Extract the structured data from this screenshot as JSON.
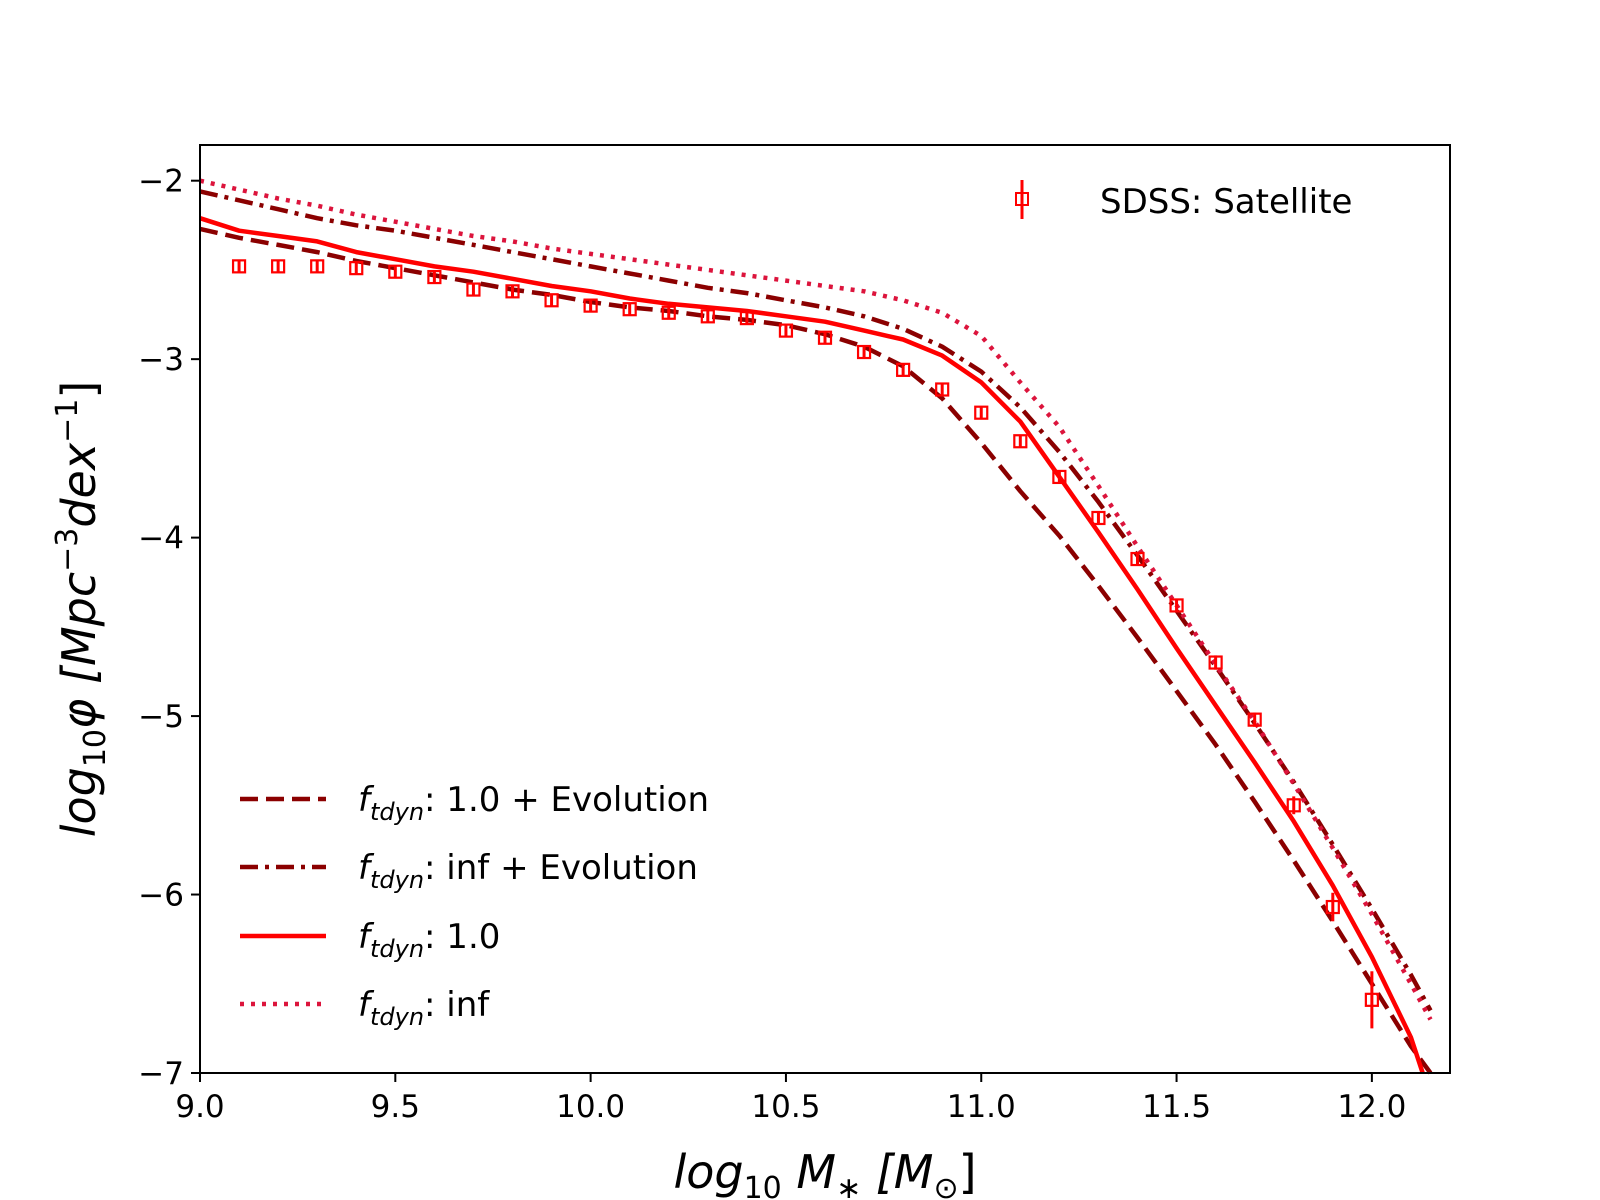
{
  "chart_data": {
    "type": "line",
    "title": "",
    "xlabel": {
      "main": "log",
      "sub": "10",
      "var": " M",
      "var_sub": "∗",
      "unit": "  [M",
      "unit_sub": "⊙",
      "close": "]"
    },
    "ylabel": {
      "main": "log",
      "sub": "10",
      "phi": "φ [Mpc",
      "sup1": "−3",
      "dex": "dex",
      "sup2": "−1",
      "close": "]"
    },
    "xlim": [
      9.0,
      12.2
    ],
    "ylim": [
      -7.0,
      -1.8
    ],
    "x_ticks": [
      9.0,
      9.5,
      10.0,
      10.5,
      11.0,
      11.5,
      12.0
    ],
    "x_tick_labels": [
      "9.0",
      "9.5",
      "10.0",
      "10.5",
      "11.0",
      "11.5",
      "12.0"
    ],
    "y_ticks": [
      -2,
      -3,
      -4,
      -5,
      -6,
      -7
    ],
    "y_tick_labels": [
      "−2",
      "−3",
      "−4",
      "−5",
      "−6",
      "−7"
    ],
    "series": [
      {
        "name": "f_tdyn: 1.0 + Evolution",
        "legend_base": "f",
        "legend_sub": "tdyn",
        "legend_rest": ": 1.0 + Evolution",
        "color": "#8b0000",
        "style": "dashed",
        "x": [
          9.0,
          9.1,
          9.2,
          9.3,
          9.4,
          9.5,
          9.6,
          9.7,
          9.8,
          9.9,
          10.0,
          10.1,
          10.2,
          10.3,
          10.4,
          10.5,
          10.6,
          10.7,
          10.8,
          10.9,
          11.0,
          11.1,
          11.2,
          11.3,
          11.4,
          11.5,
          11.6,
          11.7,
          11.8,
          11.9,
          12.0,
          12.1,
          12.15
        ],
        "y": [
          -2.27,
          -2.32,
          -2.36,
          -2.4,
          -2.45,
          -2.49,
          -2.53,
          -2.57,
          -2.61,
          -2.64,
          -2.68,
          -2.71,
          -2.73,
          -2.76,
          -2.78,
          -2.81,
          -2.86,
          -2.93,
          -3.04,
          -3.22,
          -3.47,
          -3.74,
          -3.99,
          -4.27,
          -4.56,
          -4.86,
          -5.16,
          -5.48,
          -5.81,
          -6.15,
          -6.5,
          -6.85,
          -7.0
        ]
      },
      {
        "name": "f_tdyn: inf + Evolution",
        "legend_base": "f",
        "legend_sub": "tdyn",
        "legend_rest": ": inf + Evolution",
        "color": "#8b0000",
        "style": "dashdot",
        "x": [
          9.0,
          9.1,
          9.2,
          9.3,
          9.4,
          9.5,
          9.6,
          9.7,
          9.8,
          9.9,
          10.0,
          10.1,
          10.2,
          10.3,
          10.4,
          10.5,
          10.6,
          10.7,
          10.8,
          10.9,
          11.0,
          11.1,
          11.2,
          11.3,
          11.4,
          11.5,
          11.6,
          11.7,
          11.8,
          11.9,
          12.0,
          12.1,
          12.15
        ],
        "y": [
          -2.06,
          -2.11,
          -2.16,
          -2.21,
          -2.25,
          -2.28,
          -2.32,
          -2.36,
          -2.4,
          -2.44,
          -2.48,
          -2.52,
          -2.56,
          -2.6,
          -2.63,
          -2.67,
          -2.71,
          -2.76,
          -2.83,
          -2.93,
          -3.07,
          -3.27,
          -3.52,
          -3.8,
          -4.1,
          -4.41,
          -4.72,
          -5.04,
          -5.37,
          -5.72,
          -6.08,
          -6.45,
          -6.65
        ]
      },
      {
        "name": "f_tdyn: 1.0",
        "legend_base": "f",
        "legend_sub": "tdyn",
        "legend_rest": ": 1.0",
        "color": "#ff0000",
        "style": "solid",
        "x": [
          9.0,
          9.1,
          9.2,
          9.3,
          9.4,
          9.5,
          9.6,
          9.7,
          9.8,
          9.9,
          10.0,
          10.1,
          10.2,
          10.3,
          10.4,
          10.5,
          10.6,
          10.7,
          10.8,
          10.9,
          11.0,
          11.1,
          11.2,
          11.3,
          11.4,
          11.5,
          11.6,
          11.7,
          11.8,
          11.9,
          12.0,
          12.1,
          12.13
        ],
        "y": [
          -2.21,
          -2.28,
          -2.31,
          -2.34,
          -2.4,
          -2.44,
          -2.48,
          -2.51,
          -2.55,
          -2.59,
          -2.62,
          -2.66,
          -2.69,
          -2.71,
          -2.73,
          -2.76,
          -2.79,
          -2.84,
          -2.89,
          -2.98,
          -3.13,
          -3.35,
          -3.66,
          -3.97,
          -4.29,
          -4.62,
          -4.94,
          -5.26,
          -5.59,
          -5.95,
          -6.35,
          -6.8,
          -7.0
        ]
      },
      {
        "name": "f_tdyn: inf",
        "legend_base": "f",
        "legend_sub": "tdyn",
        "legend_rest": ": inf",
        "color": "#dc143c",
        "style": "dotted",
        "x": [
          9.0,
          9.1,
          9.2,
          9.3,
          9.4,
          9.5,
          9.6,
          9.7,
          9.8,
          9.9,
          10.0,
          10.1,
          10.2,
          10.3,
          10.4,
          10.5,
          10.6,
          10.7,
          10.8,
          10.9,
          11.0,
          11.1,
          11.2,
          11.3,
          11.4,
          11.5,
          11.6,
          11.7,
          11.8,
          11.9,
          12.0,
          12.1,
          12.15
        ],
        "y": [
          -2.0,
          -2.05,
          -2.1,
          -2.14,
          -2.19,
          -2.23,
          -2.27,
          -2.31,
          -2.34,
          -2.38,
          -2.41,
          -2.44,
          -2.47,
          -2.5,
          -2.53,
          -2.56,
          -2.59,
          -2.62,
          -2.67,
          -2.74,
          -2.87,
          -3.13,
          -3.38,
          -3.71,
          -4.05,
          -4.38,
          -4.71,
          -5.03,
          -5.38,
          -5.74,
          -6.11,
          -6.5,
          -6.7
        ]
      }
    ],
    "observations": {
      "name": "SDSS: Satellite",
      "color": "#ff0000",
      "marker": "square-open",
      "x": [
        9.1,
        9.2,
        9.3,
        9.4,
        9.5,
        9.6,
        9.7,
        9.8,
        9.9,
        10.0,
        10.1,
        10.2,
        10.3,
        10.4,
        10.5,
        10.6,
        10.7,
        10.8,
        10.9,
        11.0,
        11.1,
        11.2,
        11.3,
        11.4,
        11.5,
        11.6,
        11.7,
        11.8,
        11.9,
        12.0
      ],
      "y": [
        -2.48,
        -2.48,
        -2.48,
        -2.49,
        -2.51,
        -2.54,
        -2.61,
        -2.62,
        -2.67,
        -2.7,
        -2.72,
        -2.74,
        -2.76,
        -2.77,
        -2.84,
        -2.88,
        -2.96,
        -3.06,
        -3.17,
        -3.3,
        -3.46,
        -3.66,
        -3.89,
        -4.12,
        -4.38,
        -4.7,
        -5.02,
        -5.5,
        -6.07,
        -6.59
      ],
      "yerr": [
        0.02,
        0.02,
        0.02,
        0.02,
        0.02,
        0.02,
        0.02,
        0.02,
        0.02,
        0.02,
        0.02,
        0.02,
        0.02,
        0.02,
        0.02,
        0.02,
        0.02,
        0.02,
        0.02,
        0.02,
        0.02,
        0.03,
        0.03,
        0.03,
        0.03,
        0.04,
        0.04,
        0.05,
        0.08,
        0.16
      ]
    },
    "legend_upper": "top-right",
    "legend_lower": "lower-left",
    "grid": false
  }
}
